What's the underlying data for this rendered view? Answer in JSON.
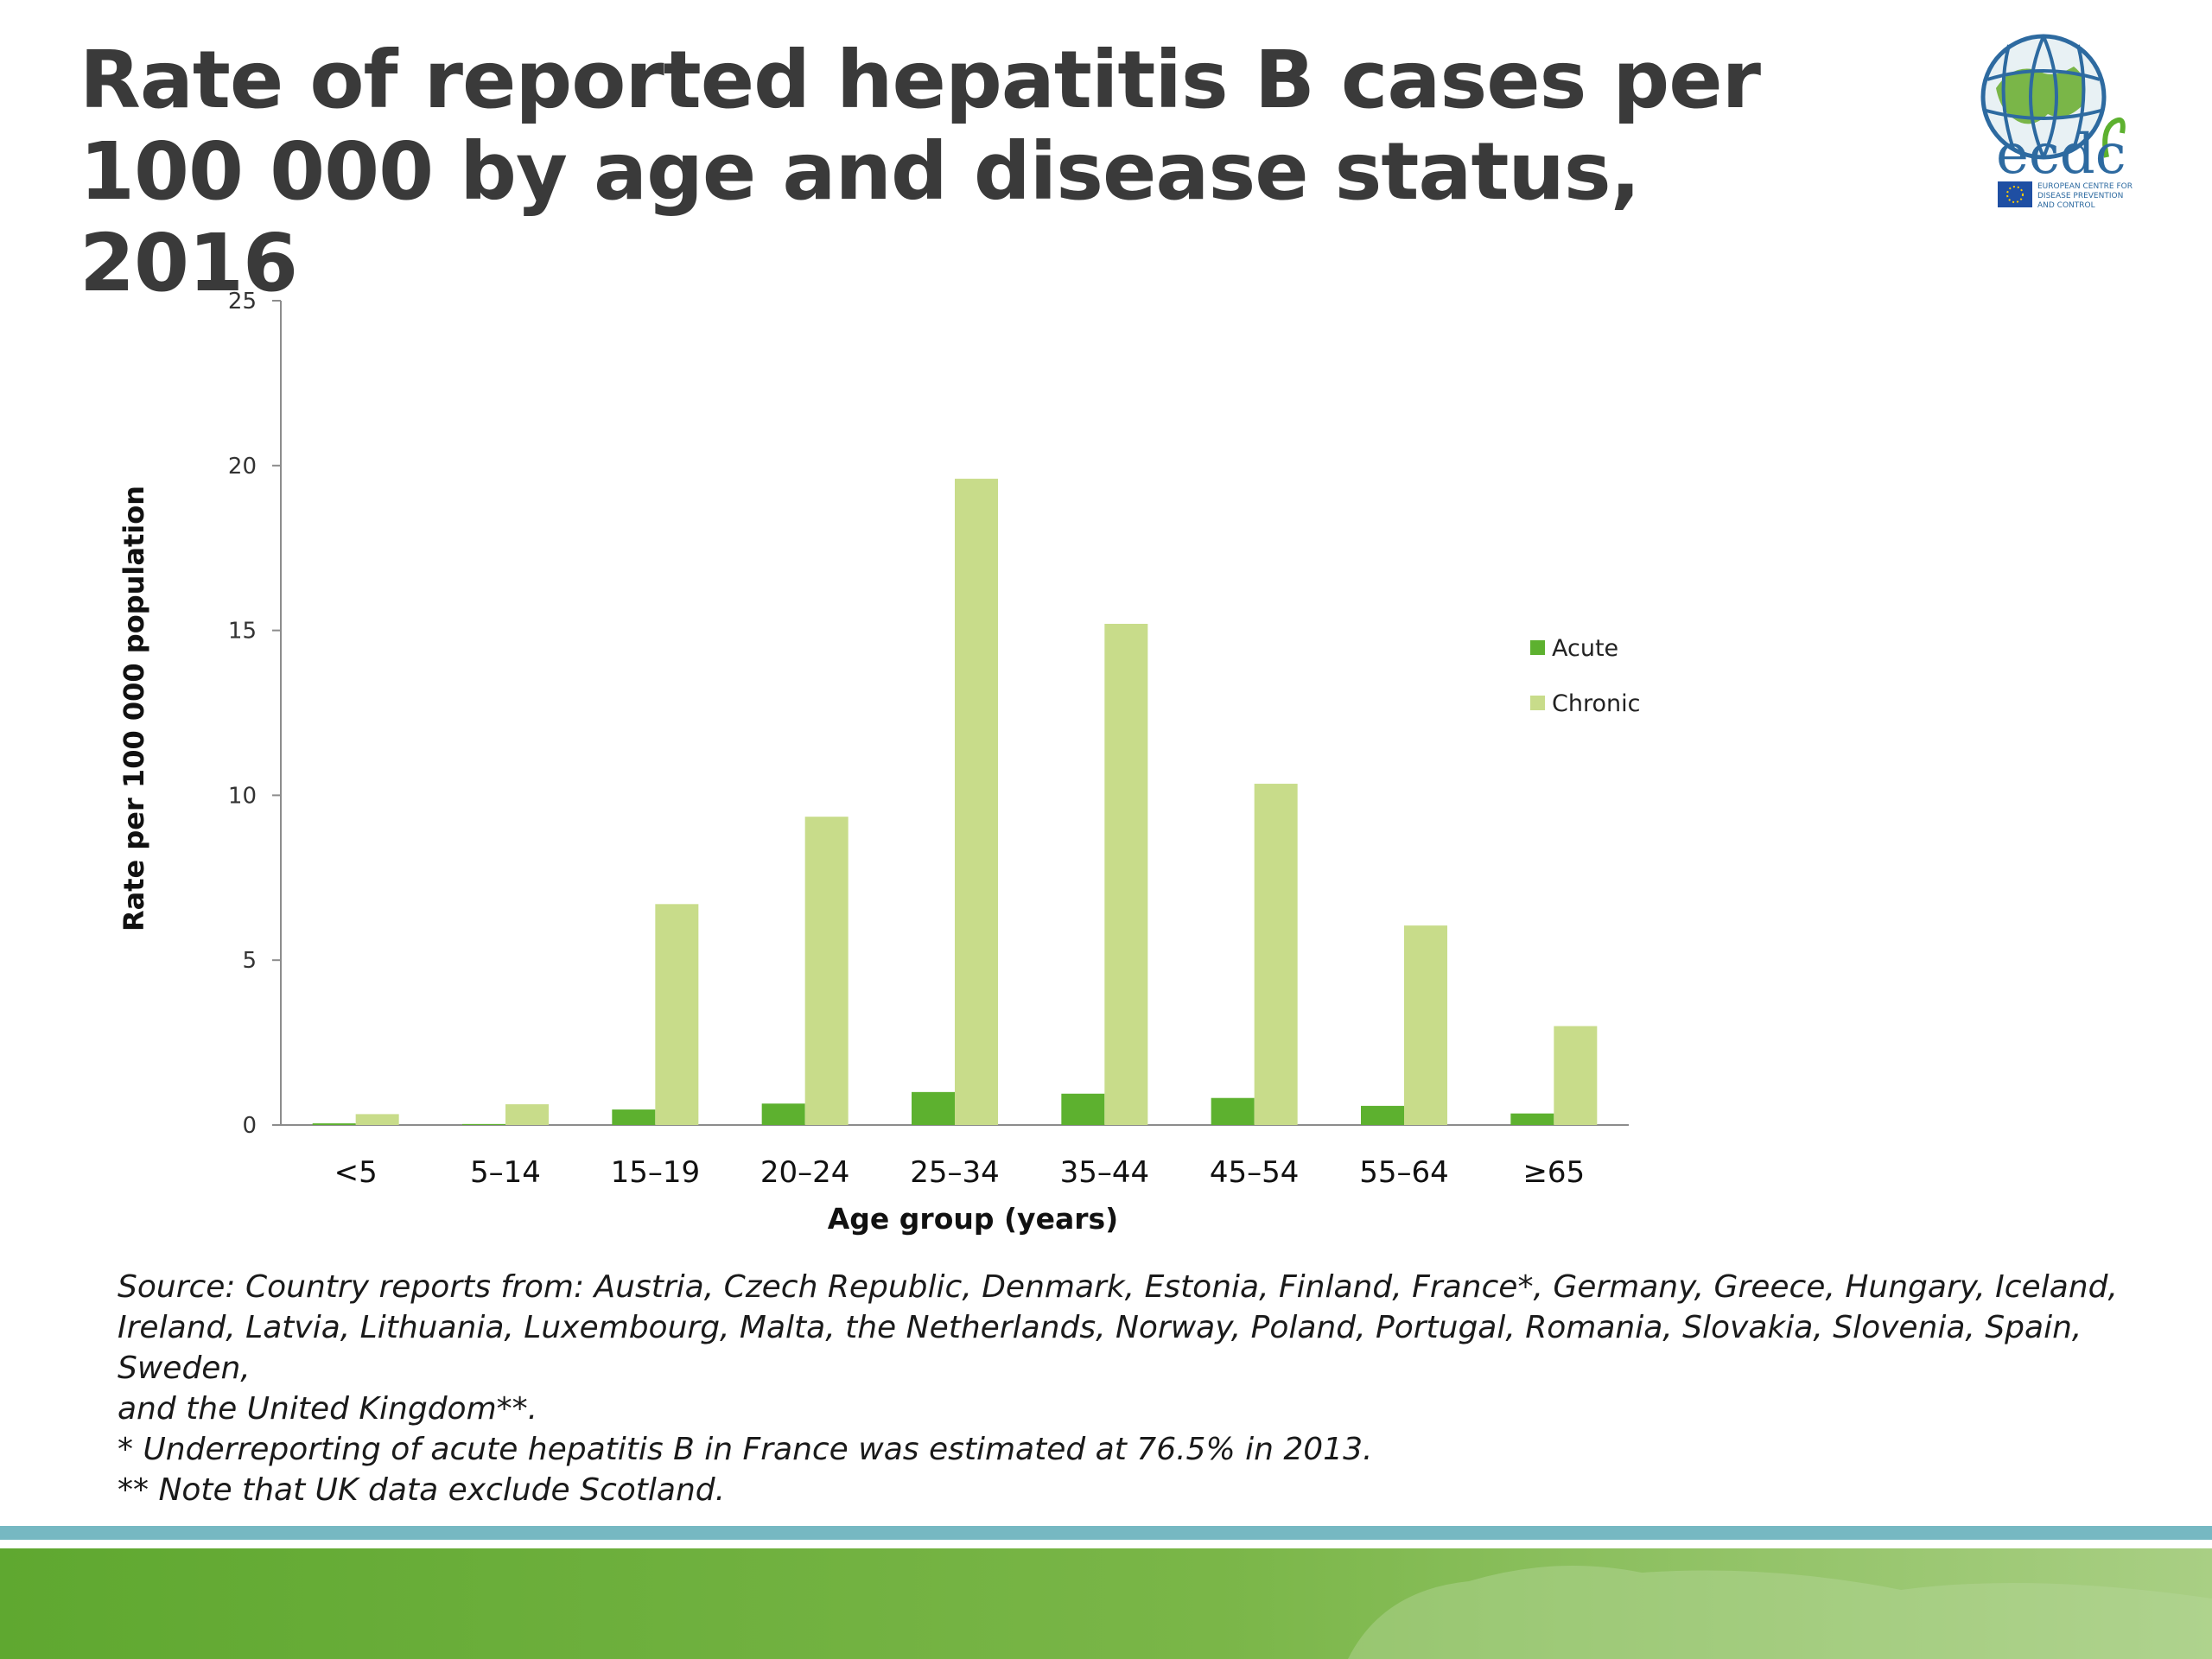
{
  "title": {
    "line1": "Rate of reported hepatitis B cases per",
    "line2": "100 000 by age and disease status, 2016"
  },
  "logo": {
    "icon": "globe-icon",
    "wordmark": "ecdc",
    "subtitle": [
      "EUROPEAN CENTRE FOR",
      "DISEASE PREVENTION",
      "AND CONTROL"
    ],
    "flag_icon": "eu-flag-icon"
  },
  "chart_data": {
    "type": "bar",
    "categories": [
      "<5",
      "5–14",
      "15–19",
      "20–24",
      "25–34",
      "35–44",
      "45–54",
      "55–64",
      "≥65"
    ],
    "series": [
      {
        "name": "Acute",
        "color": "#5db12f",
        "values": [
          0.05,
          0.03,
          0.47,
          0.65,
          1.0,
          0.95,
          0.82,
          0.58,
          0.35
        ]
      },
      {
        "name": "Chronic",
        "color": "#c8dc8a",
        "values": [
          0.33,
          0.63,
          6.7,
          9.35,
          19.6,
          15.2,
          10.35,
          6.05,
          3.0
        ]
      }
    ],
    "xlabel": "Age group (years)",
    "ylabel": "Rate per 100 000 population",
    "ylim": [
      0,
      25
    ],
    "yticks": [
      0,
      5,
      10,
      15,
      20,
      25
    ],
    "grid": false,
    "legend_position": "right"
  },
  "source": {
    "lines": [
      "Source: Country reports from: Austria, Czech Republic, Denmark, Estonia, Finland, France*, Germany, Greece, Hungary, Iceland,",
      "Ireland, Latvia, Lithuania, Luxembourg, Malta, the Netherlands, Norway, Poland, Portugal, Romania, Slovakia, Slovenia, Spain, Sweden,",
      "and the United Kingdom**.",
      "* Underreporting of acute hepatitis B in France was estimated at 76.5% in 2013.",
      "** Note that UK data exclude Scotland."
    ]
  },
  "colors": {
    "title": "#3a3a3a",
    "footer_band_top": "#76b8c2",
    "footer_green": "#7ab648"
  }
}
